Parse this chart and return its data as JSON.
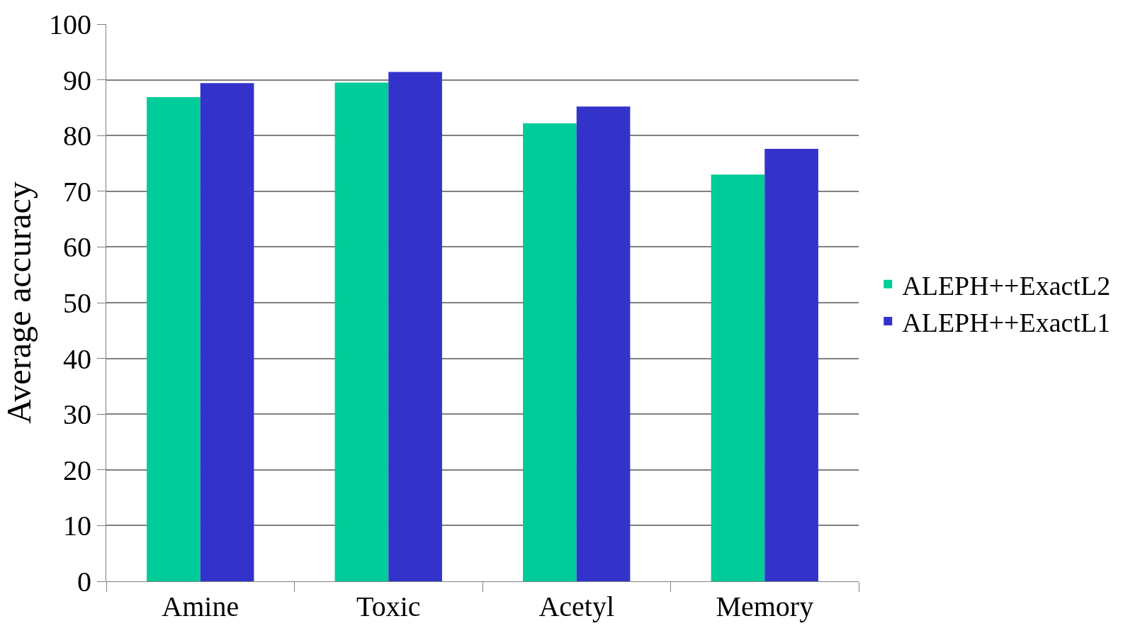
{
  "chart_data": {
    "type": "bar",
    "ylabel": "Average accuracy",
    "categories": [
      "Amine",
      "Toxic",
      "Acetyl",
      "Memory"
    ],
    "series": [
      {
        "name": "ALEPH++ExactL2",
        "color": "#00cc99",
        "values": [
          86.9,
          89.5,
          82.2,
          73.0
        ]
      },
      {
        "name": "ALEPH++ExactL1",
        "color": "#3333cc",
        "values": [
          89.4,
          91.4,
          85.2,
          77.6
        ]
      }
    ],
    "ylim": [
      0,
      100
    ],
    "yticks": [
      0,
      10,
      20,
      30,
      40,
      50,
      60,
      70,
      80,
      90,
      100
    ],
    "grid": "y",
    "legend": "right"
  }
}
